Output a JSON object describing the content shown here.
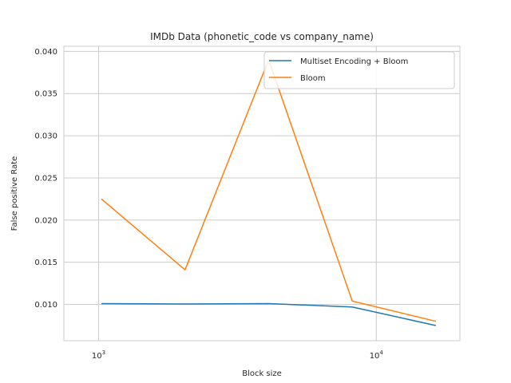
{
  "chart_data": {
    "type": "line",
    "title": "IMDb Data (phonetic_code vs company_name)",
    "xlabel": "Block size",
    "ylabel": "False positive Rate",
    "xscale": "log",
    "xlim": [
      750,
      20000
    ],
    "ylim": [
      0.0057,
      0.0406
    ],
    "x": [
      1024,
      2048,
      4096,
      8192,
      16384
    ],
    "xticks": [
      {
        "value": 1000,
        "base": "10",
        "exp": "3"
      },
      {
        "value": 10000,
        "base": "10",
        "exp": "4"
      }
    ],
    "yticks": [
      0.01,
      0.015,
      0.02,
      0.025,
      0.03,
      0.035,
      0.04
    ],
    "ytick_labels": [
      "0.010",
      "0.015",
      "0.020",
      "0.025",
      "0.030",
      "0.035",
      "0.040"
    ],
    "grid": true,
    "legend_position": "top-right",
    "series": [
      {
        "name": "Multiset Encoding + Bloom",
        "color": "#1f77b4",
        "values": [
          0.0101,
          0.01005,
          0.0101,
          0.0097,
          0.0075
        ]
      },
      {
        "name": "Bloom",
        "color": "#ff7f0e",
        "values": [
          0.0225,
          0.0141,
          0.039,
          0.0104,
          0.008
        ]
      }
    ]
  }
}
